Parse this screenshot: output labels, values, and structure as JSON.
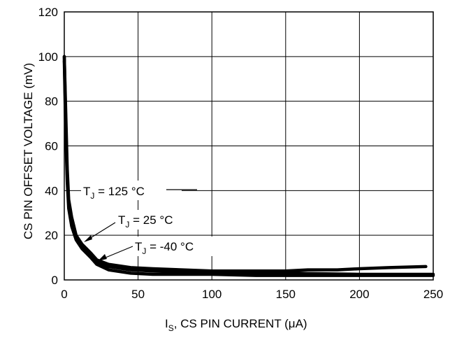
{
  "chart_data": {
    "type": "line",
    "xlabel": {
      "main": "I",
      "sub": "S",
      "rest": ", CS PIN CURRENT (",
      "mu": "μ",
      "tail": "A)"
    },
    "ylabel": "CS PIN OFFSET VOLTAGE (mV)",
    "xlim": [
      0,
      250
    ],
    "ylim": [
      0,
      120
    ],
    "xticks": [
      "0",
      "50",
      "100",
      "150",
      "200",
      "250"
    ],
    "yticks": [
      "0",
      "20",
      "40",
      "60",
      "80",
      "100",
      "120"
    ],
    "grid": true,
    "series": [
      {
        "name": "TJ = 125 °C",
        "label": {
          "main": "T",
          "sub": "J",
          "rest": " = 125 °C"
        },
        "x": [
          0,
          1,
          2,
          3,
          5,
          8,
          12,
          18,
          22,
          30,
          45,
          60,
          80,
          100,
          130,
          150,
          165,
          185,
          200,
          220,
          245
        ],
        "y": [
          100,
          75,
          50,
          36,
          28,
          20,
          16,
          12,
          9,
          7,
          5.5,
          5,
          4.5,
          4,
          4,
          4,
          4.5,
          4.5,
          5,
          5.5,
          6
        ]
      },
      {
        "name": "TJ = 25 °C",
        "label": {
          "main": "T",
          "sub": "J",
          "rest": " = 25 °C"
        },
        "x": [
          0,
          1,
          2,
          3,
          5,
          8,
          12,
          18,
          22,
          30,
          45,
          60,
          80,
          100,
          130,
          150,
          200,
          250
        ],
        "y": [
          100,
          70,
          47,
          34,
          26,
          19,
          15,
          11,
          8,
          6,
          4.5,
          4,
          3.5,
          3,
          3,
          3,
          2.5,
          2.5
        ]
      },
      {
        "name": "TJ = -40 °C",
        "label": {
          "main": "T",
          "sub": "J",
          "rest": " = -40 °C"
        },
        "x": [
          0,
          1,
          2,
          3,
          5,
          8,
          12,
          18,
          22,
          30,
          45,
          60,
          80,
          100,
          130,
          150,
          200,
          250
        ],
        "y": [
          98,
          65,
          44,
          32,
          24,
          18,
          14,
          10,
          7,
          4.5,
          3,
          2.5,
          2.5,
          2.5,
          2,
          2,
          2,
          2
        ]
      }
    ]
  }
}
